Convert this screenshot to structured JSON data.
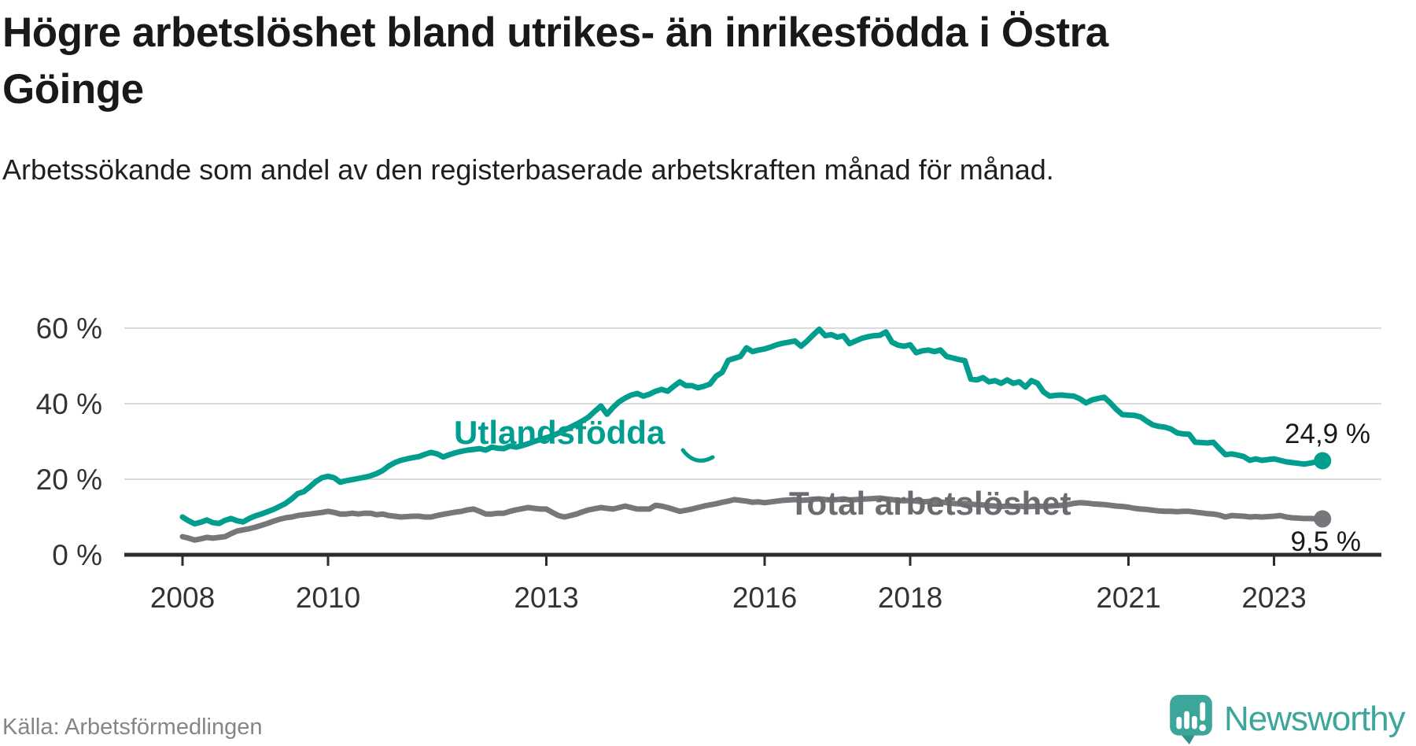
{
  "title": "Högre arbetslöshet bland utrikes- än inrikesfödda i Östra Göinge",
  "subtitle": "Arbetssökande som andel av den registerbaserade arbetskraften månad för månad.",
  "source": "Källa: Arbetsförmedlingen",
  "logo": {
    "text": "Newsworthy",
    "color": "#3ca69b"
  },
  "colors": {
    "foreign_born_line": "#019e90",
    "total_line": "#75777a",
    "total_label": "#6a6c6f",
    "axis": "#2d2d2d",
    "grid": "#dbdbdb"
  },
  "chart_data": {
    "type": "line",
    "title": "Högre arbetslöshet bland utrikes- än inrikesfödda i Östra Göinge",
    "xlabel": "",
    "ylabel": "",
    "x_range": [
      "2008-01",
      "2023-09"
    ],
    "frequency": "monthly",
    "ylim": [
      0,
      65
    ],
    "grid": "horizontal",
    "legend_position": "inline-labels",
    "y_ticks": [
      {
        "value": 0,
        "label": "0 %"
      },
      {
        "value": 20,
        "label": "20 %"
      },
      {
        "value": 40,
        "label": "40 %"
      },
      {
        "value": 60,
        "label": "60 %"
      }
    ],
    "x_ticks": [
      {
        "year": 2008,
        "label": "2008"
      },
      {
        "year": 2010,
        "label": "2010"
      },
      {
        "year": 2013,
        "label": "2013"
      },
      {
        "year": 2016,
        "label": "2016"
      },
      {
        "year": 2018,
        "label": "2018"
      },
      {
        "year": 2021,
        "label": "2021"
      },
      {
        "year": 2023,
        "label": "2023"
      }
    ],
    "series": [
      {
        "name": "Utlandsfödda",
        "color": "#019e90",
        "label_color": "#019e90",
        "end_label": "24,9 %",
        "end_value": 24.9,
        "values": [
          10.0,
          9.0,
          8.2,
          8.6,
          9.2,
          8.5,
          8.3,
          9.1,
          9.6,
          9.0,
          8.7,
          9.6,
          10.3,
          10.8,
          11.4,
          12.0,
          12.8,
          13.6,
          14.8,
          16.2,
          16.7,
          18.0,
          19.4,
          20.4,
          20.8,
          20.4,
          19.2,
          19.6,
          19.9,
          20.2,
          20.5,
          20.9,
          21.5,
          22.3,
          23.5,
          24.4,
          25.0,
          25.4,
          25.7,
          26.0,
          26.6,
          27.1,
          26.7,
          25.9,
          26.5,
          27.0,
          27.4,
          27.7,
          27.9,
          28.1,
          27.7,
          28.5,
          28.2,
          28.1,
          28.8,
          28.5,
          28.9,
          29.4,
          30.0,
          30.5,
          31.0,
          31.5,
          32.2,
          33.0,
          33.8,
          34.6,
          35.5,
          36.5,
          38.0,
          39.4,
          37.2,
          39.0,
          40.5,
          41.5,
          42.3,
          42.7,
          42.0,
          42.5,
          43.3,
          43.8,
          43.3,
          44.6,
          45.8,
          44.8,
          44.8,
          44.2,
          44.6,
          45.2,
          47.3,
          48.3,
          51.5,
          52.0,
          52.5,
          54.8,
          53.8,
          54.2,
          54.5,
          55.0,
          55.6,
          56.0,
          56.3,
          56.6,
          55.2,
          56.6,
          58.2,
          59.7,
          58.0,
          58.3,
          57.6,
          58.0,
          55.9,
          56.6,
          57.3,
          57.7,
          58.0,
          58.1,
          59.0,
          56.3,
          55.5,
          55.2,
          55.6,
          53.5,
          54.0,
          54.2,
          53.8,
          54.2,
          52.5,
          52.1,
          51.7,
          51.4,
          46.5,
          46.3,
          46.9,
          45.8,
          46.1,
          45.4,
          46.3,
          45.4,
          45.8,
          44.4,
          46.1,
          45.4,
          43.1,
          42.0,
          42.2,
          42.3,
          42.1,
          42.0,
          41.3,
          40.2,
          41.0,
          41.4,
          41.7,
          40.2,
          38.5,
          37.1,
          37.0,
          36.9,
          36.5,
          35.4,
          34.4,
          34.0,
          33.8,
          33.3,
          32.3,
          32.0,
          31.9,
          29.8,
          29.7,
          29.6,
          29.8,
          28.1,
          26.5,
          26.7,
          26.4,
          26.0,
          25.0,
          25.4,
          25.0,
          25.2,
          25.4,
          25.0,
          24.6,
          24.4,
          24.2,
          24.0,
          24.3,
          24.6,
          24.9
        ]
      },
      {
        "name": "Total arbetslöshet",
        "color": "#75777a",
        "label_color": "#6a6c6f",
        "end_label": "9,5 %",
        "end_value": 9.5,
        "values": [
          4.8,
          4.4,
          3.9,
          4.2,
          4.6,
          4.4,
          4.6,
          4.8,
          5.6,
          6.3,
          6.6,
          6.9,
          7.3,
          7.8,
          8.3,
          8.9,
          9.4,
          9.8,
          10.0,
          10.4,
          10.6,
          10.8,
          11.0,
          11.2,
          11.5,
          11.2,
          10.8,
          10.8,
          11.0,
          10.8,
          11.0,
          11.0,
          10.6,
          10.8,
          10.4,
          10.2,
          10.0,
          10.1,
          10.2,
          10.2,
          10.0,
          10.0,
          10.4,
          10.7,
          11.0,
          11.3,
          11.5,
          11.9,
          12.1,
          11.5,
          10.8,
          10.8,
          11.0,
          11.0,
          11.5,
          11.9,
          12.2,
          12.5,
          12.3,
          12.1,
          12.1,
          11.2,
          10.4,
          10.0,
          10.4,
          10.8,
          11.4,
          11.9,
          12.2,
          12.5,
          12.3,
          12.1,
          12.5,
          12.9,
          12.5,
          12.1,
          12.1,
          12.1,
          13.1,
          12.9,
          12.5,
          12.0,
          11.5,
          11.8,
          12.1,
          12.5,
          12.9,
          13.2,
          13.5,
          13.9,
          14.2,
          14.6,
          14.4,
          14.2,
          13.9,
          14.0,
          13.8,
          14.0,
          14.2,
          14.4,
          14.5,
          14.6,
          14.4,
          14.5,
          14.7,
          14.8,
          14.6,
          14.5,
          14.6,
          14.8,
          14.5,
          14.6,
          14.7,
          14.8,
          14.9,
          15.0,
          14.8,
          14.6,
          14.4,
          14.3,
          14.4,
          14.2,
          14.0,
          14.1,
          14.2,
          14.0,
          13.8,
          13.6,
          13.5,
          13.6,
          13.4,
          13.3,
          13.2,
          13.0,
          12.9,
          12.8,
          12.9,
          12.8,
          12.9,
          12.7,
          12.8,
          12.9,
          12.8,
          12.9,
          13.0,
          13.1,
          13.3,
          13.6,
          13.8,
          13.7,
          13.5,
          13.4,
          13.3,
          13.1,
          12.9,
          12.8,
          12.6,
          12.3,
          12.1,
          12.0,
          11.8,
          11.6,
          11.5,
          11.5,
          11.4,
          11.5,
          11.5,
          11.3,
          11.1,
          10.9,
          10.8,
          10.5,
          10.0,
          10.4,
          10.3,
          10.2,
          10.0,
          10.1,
          10.0,
          10.1,
          10.2,
          10.4,
          10.0,
          9.8,
          9.7,
          9.6,
          9.6,
          9.5,
          9.5
        ]
      }
    ]
  }
}
